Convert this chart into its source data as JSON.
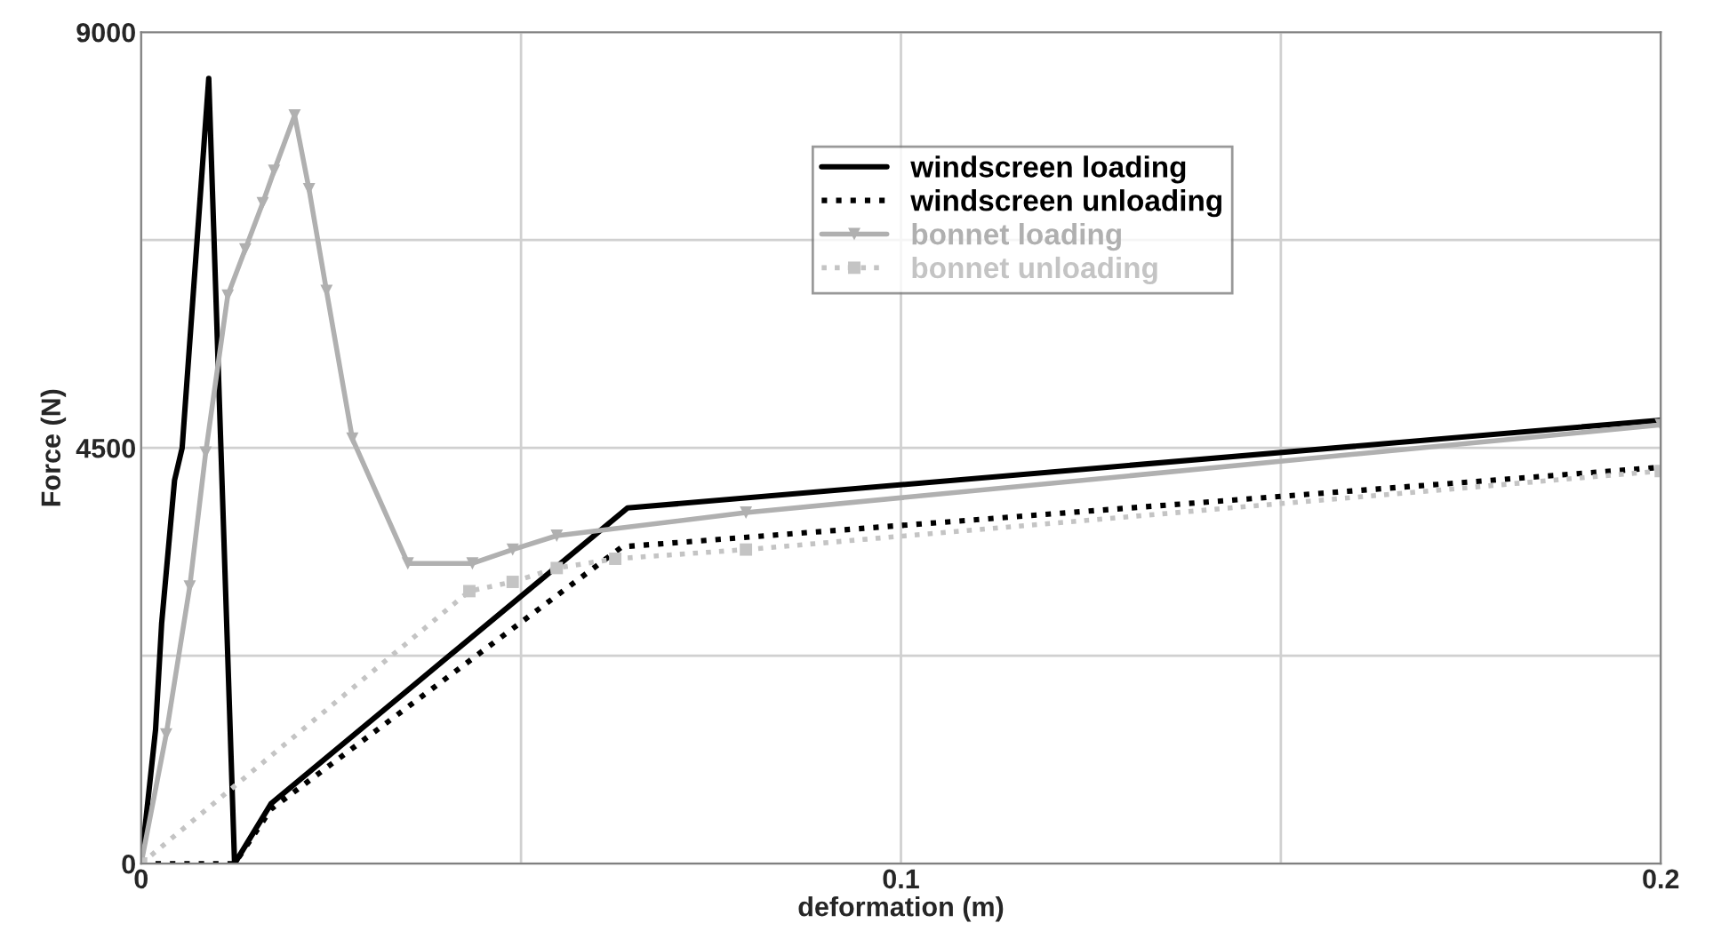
{
  "chart_data": {
    "type": "line",
    "xlabel": "deformation (m)",
    "ylabel": "Force (N)",
    "xlim": [
      0,
      0.2
    ],
    "xticks": [
      0,
      {
        "value": 0.05,
        "label": null
      },
      0.1,
      {
        "value": 0.15,
        "label": null
      },
      0.2
    ],
    "ylim": [
      0,
      9000
    ],
    "yticks": [
      0,
      {
        "value": 2250,
        "label": null
      },
      4500,
      {
        "value": 6750,
        "label": null
      },
      9000
    ],
    "grid": true,
    "legend": "top",
    "series": [
      {
        "name": "windscreen loading",
        "color": "#000000",
        "line_style": "solid",
        "marker": "none",
        "x": [
          0,
          0.0019,
          0.0027,
          0.0044,
          0.0054,
          0.0089,
          0.0123,
          0.0171,
          0.064,
          0.2
        ],
        "values": [
          0,
          1450,
          2600,
          4150,
          4500,
          8500,
          0,
          650,
          3850,
          4800
        ]
      },
      {
        "name": "windscreen unloading",
        "color": "#000000",
        "line_style": "dotted",
        "marker": "none",
        "x": [
          0,
          0.0123,
          0.0171,
          0.0633,
          0.2
        ],
        "values": [
          0,
          0,
          590,
          3430,
          4290
        ]
      },
      {
        "name": "bonnet loading",
        "color": "#b0b0b0",
        "line_style": "solid",
        "marker": "triangle",
        "x": [
          0,
          0.0033,
          0.0064,
          0.0085,
          0.0114,
          0.0137,
          0.016,
          0.0175,
          0.0202,
          0.0221,
          0.0244,
          0.0278,
          0.0351,
          0.0436,
          0.0489,
          0.0547,
          0.0796,
          0.2
        ],
        "values": [
          0,
          1400,
          3000,
          4450,
          6150,
          6650,
          7150,
          7500,
          8100,
          7300,
          6200,
          4600,
          3250,
          3250,
          3400,
          3550,
          3800,
          4750
        ]
      },
      {
        "name": "bonnet unloading",
        "color": "#c4c4c4",
        "line_style": "dotted",
        "marker": "square",
        "x": [
          0,
          0.0432,
          0.0489,
          0.0547,
          0.0624,
          0.0796,
          0.2
        ],
        "values": [
          0,
          2950,
          3050,
          3200,
          3300,
          3400,
          4250
        ]
      }
    ]
  }
}
